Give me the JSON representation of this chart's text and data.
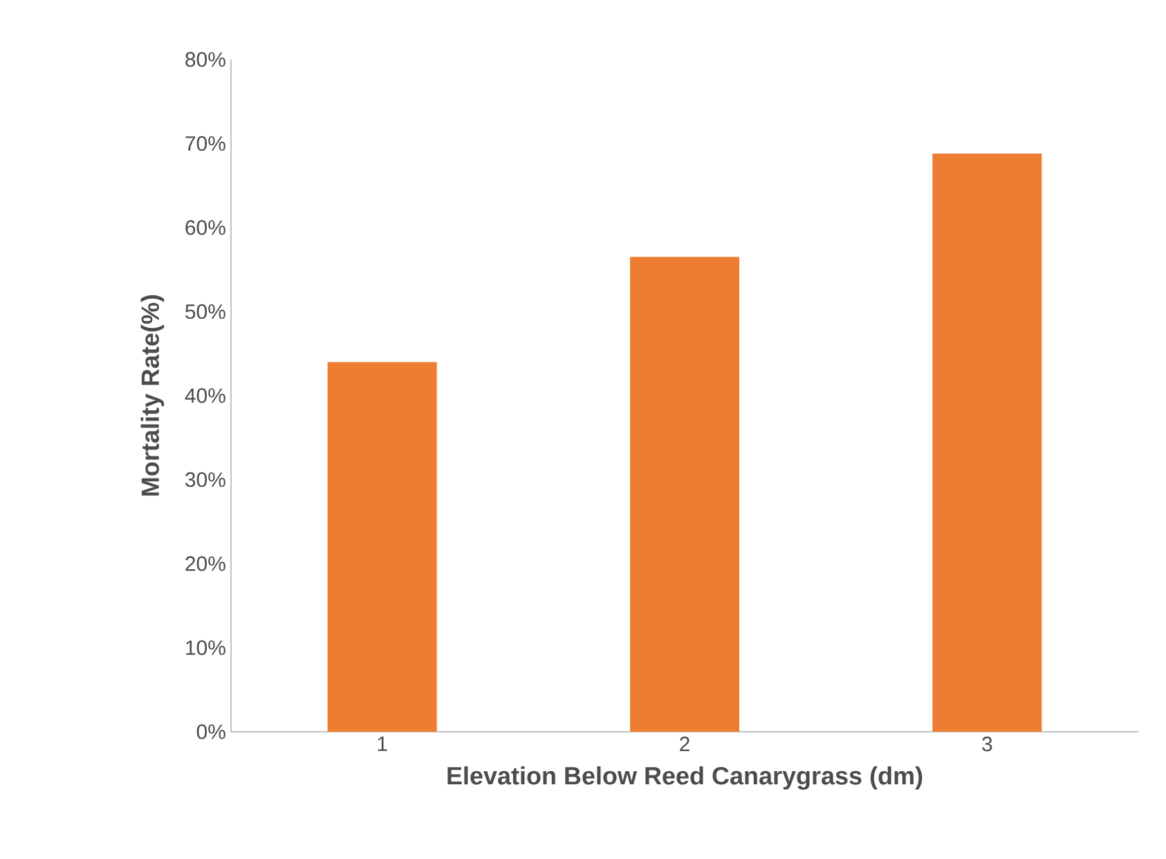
{
  "chart_data": {
    "type": "bar",
    "xlabel": "Elevation Below Reed Canarygrass (dm)",
    "ylabel": "Mortality Rate(%)",
    "categories": [
      "1",
      "2",
      "3"
    ],
    "values": [
      44,
      56.5,
      68.8
    ],
    "color": "#ed7d31",
    "ylim": [
      0,
      80
    ],
    "yticks": [
      {
        "value": 0,
        "label": "0%"
      },
      {
        "value": 10,
        "label": "10%"
      },
      {
        "value": 20,
        "label": "20%"
      },
      {
        "value": 30,
        "label": "30%"
      },
      {
        "value": 40,
        "label": "40%"
      },
      {
        "value": 50,
        "label": "50%"
      },
      {
        "value": 60,
        "label": "60%"
      },
      {
        "value": 70,
        "label": "70%"
      },
      {
        "value": 80,
        "label": "80%"
      }
    ],
    "grid": false
  }
}
